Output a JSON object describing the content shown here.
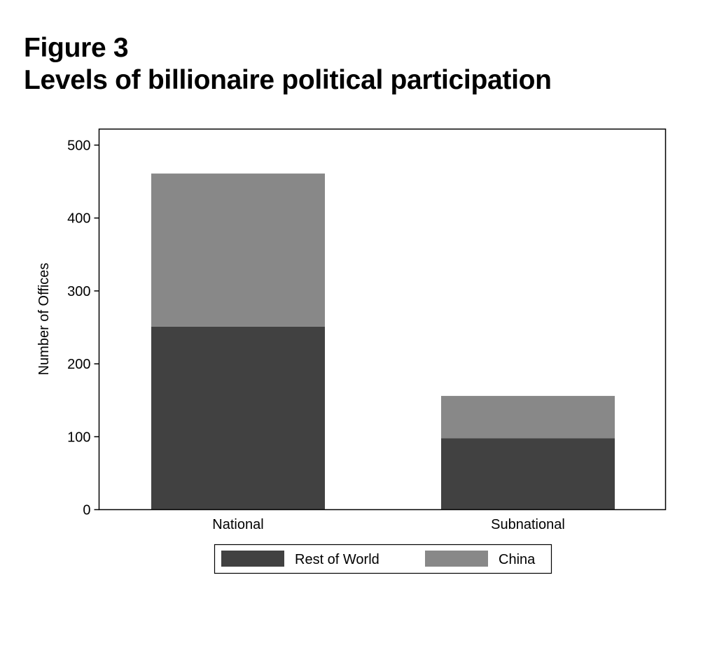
{
  "figure": {
    "label": "Figure 3",
    "title": "Levels of billionaire political participation"
  },
  "chart_data": {
    "type": "bar",
    "stacked": true,
    "categories": [
      "National",
      "Subnational"
    ],
    "series": [
      {
        "name": "Rest of World",
        "values": [
          251,
          98
        ],
        "color": "#414141"
      },
      {
        "name": "China",
        "values": [
          210,
          58
        ],
        "color": "#888888"
      }
    ],
    "xlabel": "",
    "ylabel": "Number of Offices",
    "ylim": [
      0,
      522
    ],
    "yticks": [
      0,
      100,
      200,
      300,
      400,
      500
    ],
    "grid": false,
    "legend_position": "bottom"
  }
}
